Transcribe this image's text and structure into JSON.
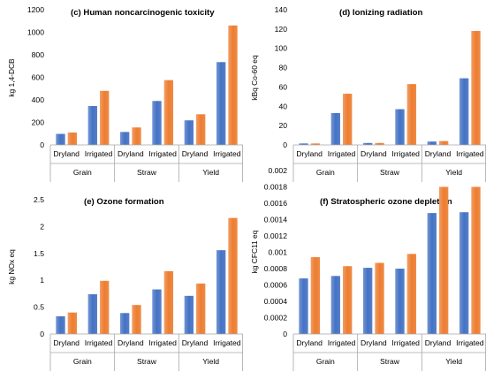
{
  "chart_data": [
    {
      "type": "bar",
      "title": "(c) Human noncarcinogenic toxicity",
      "ylabel": "kg 1,4-DCB",
      "ylim": [
        0,
        1200
      ],
      "yticks": [
        "0",
        "200",
        "400",
        "600",
        "800",
        "1000",
        "1200"
      ],
      "groups": [
        "Grain",
        "Straw",
        "Yield"
      ],
      "subcategories": [
        "Dryland",
        "Irrigated"
      ],
      "series": [
        {
          "color": "#4472c4",
          "values": [
            98,
            345,
            115,
            390,
            218,
            735
          ]
        },
        {
          "color": "#ed7d31",
          "values": [
            110,
            480,
            155,
            575,
            272,
            1060
          ]
        }
      ]
    },
    {
      "type": "bar",
      "title": "(d) Ionizing radiation",
      "ylabel": "kBq Co-60 eq",
      "ylim": [
        0,
        140
      ],
      "yticks": [
        "0",
        "20",
        "40",
        "60",
        "80",
        "100",
        "120",
        "140"
      ],
      "groups": [
        "Grain",
        "Straw",
        "Yield"
      ],
      "subcategories": [
        "Dryland",
        "Irrigated"
      ],
      "series": [
        {
          "color": "#4472c4",
          "values": [
            1.5,
            33,
            2,
            37,
            3.5,
            69
          ]
        },
        {
          "color": "#ed7d31",
          "values": [
            1.5,
            53,
            2,
            63,
            4,
            118
          ]
        }
      ]
    },
    {
      "type": "bar",
      "title": "(e) Ozone formation",
      "ylabel": "kg NOx eq",
      "ylim": [
        0,
        2.5
      ],
      "yticks": [
        "0",
        "0.5",
        "1",
        "1.5",
        "2",
        "2.5"
      ],
      "groups": [
        "Grain",
        "Straw",
        "Yield"
      ],
      "subcategories": [
        "Dryland",
        "Irrigated"
      ],
      "series": [
        {
          "color": "#4472c4",
          "values": [
            0.33,
            0.74,
            0.39,
            0.83,
            0.71,
            1.56
          ]
        },
        {
          "color": "#ed7d31",
          "values": [
            0.4,
            0.99,
            0.54,
            1.17,
            0.94,
            2.16
          ]
        }
      ]
    },
    {
      "type": "bar",
      "title": "(f) Stratospheric ozone depletion",
      "ylabel": "kg CFC11 eq",
      "ylim": [
        0,
        0.002
      ],
      "yticks": [
        "0",
        "0.0002",
        "0.0004",
        "0.0006",
        "0.0008",
        "0.001",
        "0.0012",
        "0.0014",
        "0.0016",
        "0.0018",
        "0.002"
      ],
      "groups": [
        "Grain",
        "Straw",
        "Yield"
      ],
      "subcategories": [
        "Dryland",
        "Irrigated"
      ],
      "series": [
        {
          "color": "#4472c4",
          "values": [
            0.00068,
            0.00071,
            0.00081,
            0.0008,
            0.00148,
            0.00149
          ]
        },
        {
          "color": "#ed7d31",
          "values": [
            0.00094,
            0.00083,
            0.00087,
            0.00098,
            0.0018,
            0.0018
          ]
        }
      ]
    }
  ]
}
